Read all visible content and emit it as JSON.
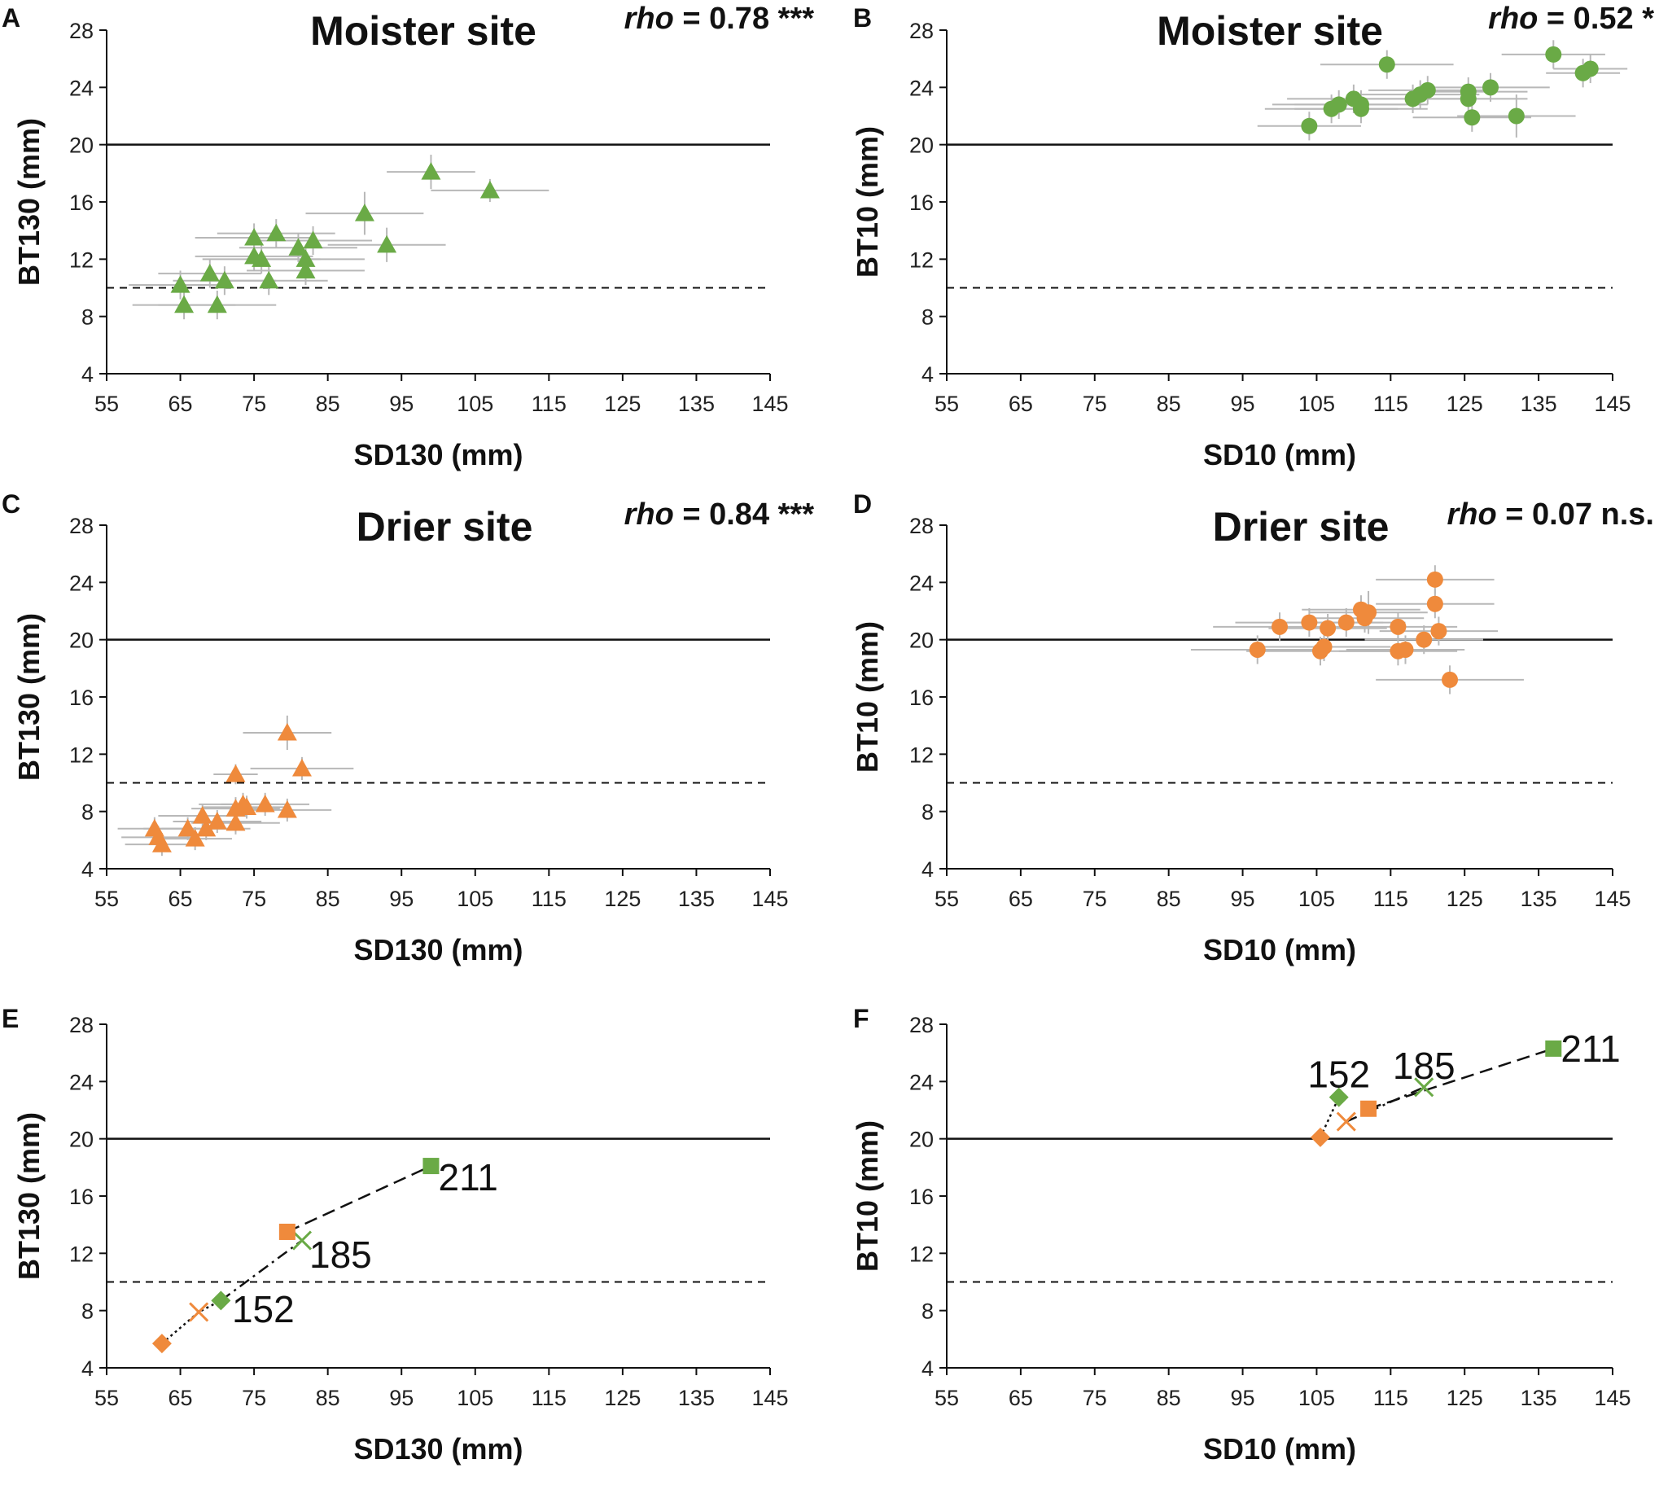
{
  "colors": {
    "green": "#6aaa46",
    "orange": "#ef8a3c",
    "errorbar": "#b8b8b8",
    "axis": "#111111"
  },
  "chart_data": [
    {
      "panel": "A",
      "type": "scatter",
      "title": "Moister site",
      "rho_label": "rho",
      "rho_value": " = 0.78 ***",
      "xlabel": "SD130 (mm)",
      "ylabel": "BT130 (mm)",
      "xlim": [
        55,
        145
      ],
      "ylim": [
        4,
        28
      ],
      "xticks": [
        "55",
        "65",
        "75",
        "85",
        "95",
        "105",
        "115",
        "125",
        "135",
        "145"
      ],
      "yticks": [
        "4",
        "8",
        "12",
        "16",
        "20",
        "24",
        "28"
      ],
      "hlines": [
        {
          "y": 20,
          "style": "solid"
        },
        {
          "y": 10,
          "style": "dashed"
        }
      ],
      "series": [
        {
          "name": "Moister site",
          "marker": "triangle",
          "color": "green",
          "points": [
            {
              "x": 99,
              "y": 18.1,
              "xerr": 6,
              "yerr": 1.2
            },
            {
              "x": 107,
              "y": 16.8,
              "xerr": 8,
              "yerr": 0.8
            },
            {
              "x": 90,
              "y": 15.2,
              "xerr": 8,
              "yerr": 1.5
            },
            {
              "x": 93,
              "y": 13,
              "xerr": 8,
              "yerr": 1.2
            },
            {
              "x": 75,
              "y": 13.5,
              "xerr": 8,
              "yerr": 1
            },
            {
              "x": 78,
              "y": 13.8,
              "xerr": 8,
              "yerr": 1
            },
            {
              "x": 83,
              "y": 13.3,
              "xerr": 8,
              "yerr": 1
            },
            {
              "x": 81,
              "y": 12.8,
              "xerr": 8,
              "yerr": 1
            },
            {
              "x": 75,
              "y": 12.2,
              "xerr": 8,
              "yerr": 1
            },
            {
              "x": 76,
              "y": 12,
              "xerr": 8,
              "yerr": 1
            },
            {
              "x": 82,
              "y": 12,
              "xerr": 8,
              "yerr": 1
            },
            {
              "x": 82,
              "y": 11.2,
              "xerr": 8,
              "yerr": 1
            },
            {
              "x": 69,
              "y": 11,
              "xerr": 7,
              "yerr": 1
            },
            {
              "x": 71,
              "y": 10.5,
              "xerr": 7,
              "yerr": 1
            },
            {
              "x": 77,
              "y": 10.5,
              "xerr": 8,
              "yerr": 1
            },
            {
              "x": 65,
              "y": 10.2,
              "xerr": 7,
              "yerr": 1
            },
            {
              "x": 65.5,
              "y": 8.8,
              "xerr": 7,
              "yerr": 1
            },
            {
              "x": 70,
              "y": 8.8,
              "xerr": 8,
              "yerr": 1
            }
          ]
        }
      ]
    },
    {
      "panel": "B",
      "type": "scatter",
      "title": "Moister site",
      "rho_label": "rho",
      "rho_value": " = 0.52 *",
      "xlabel": "SD10 (mm)",
      "ylabel": "BT10 (mm)",
      "xlim": [
        55,
        145
      ],
      "ylim": [
        4,
        28
      ],
      "xticks": [
        "55",
        "65",
        "75",
        "85",
        "95",
        "105",
        "115",
        "125",
        "135",
        "145"
      ],
      "yticks": [
        "4",
        "8",
        "12",
        "16",
        "20",
        "24",
        "28"
      ],
      "hlines": [
        {
          "y": 20,
          "style": "solid"
        },
        {
          "y": 10,
          "style": "dashed"
        }
      ],
      "series": [
        {
          "name": "Moister site",
          "marker": "circle",
          "color": "green",
          "points": [
            {
              "x": 104,
              "y": 21.3,
              "xerr": 7,
              "yerr": 1
            },
            {
              "x": 107,
              "y": 22.5,
              "xerr": 9,
              "yerr": 1
            },
            {
              "x": 108,
              "y": 22.8,
              "xerr": 9,
              "yerr": 1
            },
            {
              "x": 110,
              "y": 23.2,
              "xerr": 9,
              "yerr": 1
            },
            {
              "x": 111,
              "y": 22.8,
              "xerr": 9,
              "yerr": 1
            },
            {
              "x": 111,
              "y": 22.5,
              "xerr": 9,
              "yerr": 1
            },
            {
              "x": 114.5,
              "y": 25.6,
              "xerr": 9,
              "yerr": 1
            },
            {
              "x": 118,
              "y": 23.2,
              "xerr": 8,
              "yerr": 1
            },
            {
              "x": 119,
              "y": 23.5,
              "xerr": 8,
              "yerr": 1
            },
            {
              "x": 120,
              "y": 23.8,
              "xerr": 8,
              "yerr": 1
            },
            {
              "x": 125.5,
              "y": 23.7,
              "xerr": 8,
              "yerr": 1
            },
            {
              "x": 125.5,
              "y": 23.2,
              "xerr": 8,
              "yerr": 1
            },
            {
              "x": 126,
              "y": 21.9,
              "xerr": 8,
              "yerr": 1
            },
            {
              "x": 128.5,
              "y": 24,
              "xerr": 8,
              "yerr": 1
            },
            {
              "x": 132,
              "y": 22,
              "xerr": 8,
              "yerr": 1.5
            },
            {
              "x": 137,
              "y": 26.3,
              "xerr": 7,
              "yerr": 1
            },
            {
              "x": 141,
              "y": 25,
              "xerr": 5,
              "yerr": 1
            },
            {
              "x": 142,
              "y": 25.3,
              "xerr": 5,
              "yerr": 1
            }
          ]
        }
      ]
    },
    {
      "panel": "C",
      "type": "scatter",
      "title": "Drier site",
      "rho_label": "rho",
      "rho_value": " = 0.84 ***",
      "xlabel": "SD130 (mm)",
      "ylabel": "BT130 (mm)",
      "xlim": [
        55,
        145
      ],
      "ylim": [
        4,
        28
      ],
      "xticks": [
        "55",
        "65",
        "75",
        "85",
        "95",
        "105",
        "115",
        "125",
        "135",
        "145"
      ],
      "yticks": [
        "4",
        "8",
        "12",
        "16",
        "20",
        "24",
        "28"
      ],
      "hlines": [
        {
          "y": 20,
          "style": "solid"
        },
        {
          "y": 10,
          "style": "dashed"
        }
      ],
      "series": [
        {
          "name": "Drier site",
          "marker": "triangle",
          "color": "orange",
          "points": [
            {
              "x": 79.5,
              "y": 13.5,
              "xerr": 6,
              "yerr": 1.2
            },
            {
              "x": 81.5,
              "y": 11,
              "xerr": 7,
              "yerr": 0.8
            },
            {
              "x": 72.5,
              "y": 10.6,
              "xerr": 3,
              "yerr": 0.7
            },
            {
              "x": 73.5,
              "y": 8.5,
              "xerr": 6,
              "yerr": 0.8
            },
            {
              "x": 74,
              "y": 8.3,
              "xerr": 6,
              "yerr": 0.8
            },
            {
              "x": 76.5,
              "y": 8.5,
              "xerr": 6,
              "yerr": 0.8
            },
            {
              "x": 79.5,
              "y": 8.1,
              "xerr": 6,
              "yerr": 0.8
            },
            {
              "x": 72.5,
              "y": 8.2,
              "xerr": 6,
              "yerr": 0.8
            },
            {
              "x": 68,
              "y": 7.7,
              "xerr": 6,
              "yerr": 0.8
            },
            {
              "x": 70,
              "y": 7.3,
              "xerr": 6,
              "yerr": 0.8
            },
            {
              "x": 72.5,
              "y": 7.2,
              "xerr": 6,
              "yerr": 0.8
            },
            {
              "x": 66,
              "y": 6.8,
              "xerr": 6,
              "yerr": 0.8
            },
            {
              "x": 68.5,
              "y": 6.8,
              "xerr": 6,
              "yerr": 0.8
            },
            {
              "x": 61.5,
              "y": 6.8,
              "xerr": 5,
              "yerr": 0.8
            },
            {
              "x": 67,
              "y": 6.1,
              "xerr": 5,
              "yerr": 0.8
            },
            {
              "x": 62,
              "y": 6.2,
              "xerr": 5,
              "yerr": 0.8
            },
            {
              "x": 62.5,
              "y": 5.7,
              "xerr": 5,
              "yerr": 0.8
            }
          ]
        }
      ]
    },
    {
      "panel": "D",
      "type": "scatter",
      "title": "Drier site",
      "rho_label": "rho",
      "rho_value": " = 0.07 n.s.",
      "xlabel": "SD10 (mm)",
      "ylabel": "BT10 (mm)",
      "xlim": [
        55,
        145
      ],
      "ylim": [
        4,
        28
      ],
      "xticks": [
        "55",
        "65",
        "75",
        "85",
        "95",
        "105",
        "115",
        "125",
        "135",
        "145"
      ],
      "yticks": [
        "4",
        "8",
        "12",
        "16",
        "20",
        "24",
        "28"
      ],
      "hlines": [
        {
          "y": 20,
          "style": "solid"
        },
        {
          "y": 10,
          "style": "dashed"
        }
      ],
      "series": [
        {
          "name": "Drier site",
          "marker": "circle",
          "color": "orange",
          "points": [
            {
              "x": 121,
              "y": 24.2,
              "xerr": 8,
              "yerr": 1
            },
            {
              "x": 121,
              "y": 22.5,
              "xerr": 8,
              "yerr": 1
            },
            {
              "x": 111,
              "y": 22.1,
              "xerr": 8,
              "yerr": 1
            },
            {
              "x": 112,
              "y": 21.9,
              "xerr": 8,
              "yerr": 1.5
            },
            {
              "x": 111.5,
              "y": 21.5,
              "xerr": 8,
              "yerr": 1
            },
            {
              "x": 109,
              "y": 21.2,
              "xerr": 8,
              "yerr": 1
            },
            {
              "x": 104,
              "y": 21.2,
              "xerr": 10,
              "yerr": 1
            },
            {
              "x": 100,
              "y": 20.9,
              "xerr": 9,
              "yerr": 1
            },
            {
              "x": 106.5,
              "y": 20.8,
              "xerr": 8,
              "yerr": 1
            },
            {
              "x": 116,
              "y": 20.9,
              "xerr": 8,
              "yerr": 1
            },
            {
              "x": 121.5,
              "y": 20.6,
              "xerr": 8,
              "yerr": 1
            },
            {
              "x": 119.5,
              "y": 20,
              "xerr": 8,
              "yerr": 1
            },
            {
              "x": 106,
              "y": 19.5,
              "xerr": 9,
              "yerr": 1
            },
            {
              "x": 105.5,
              "y": 19.2,
              "xerr": 10,
              "yerr": 1
            },
            {
              "x": 97,
              "y": 19.3,
              "xerr": 9,
              "yerr": 1
            },
            {
              "x": 116,
              "y": 19.2,
              "xerr": 8,
              "yerr": 1
            },
            {
              "x": 117,
              "y": 19.3,
              "xerr": 8,
              "yerr": 1
            },
            {
              "x": 123,
              "y": 17.2,
              "xerr": 10,
              "yerr": 1
            }
          ]
        }
      ]
    },
    {
      "panel": "E",
      "type": "line",
      "xlabel": "SD130 (mm)",
      "ylabel": "BT130 (mm)",
      "xlim": [
        55,
        145
      ],
      "ylim": [
        4,
        28
      ],
      "xticks": [
        "55",
        "65",
        "75",
        "85",
        "95",
        "105",
        "115",
        "125",
        "135",
        "145"
      ],
      "yticks": [
        "4",
        "8",
        "12",
        "16",
        "20",
        "24",
        "28"
      ],
      "hlines": [
        {
          "y": 20,
          "style": "solid"
        },
        {
          "y": 10,
          "style": "dashed"
        }
      ],
      "series": [
        {
          "name": "152",
          "line": "dotted",
          "points": [
            {
              "x": 62.5,
              "y": 5.7,
              "marker": "diamond",
              "color": "orange"
            },
            {
              "x": 67.5,
              "y": 7.9,
              "marker": "x",
              "color": "orange"
            },
            {
              "x": 70.5,
              "y": 8.7,
              "marker": "diamond",
              "color": "green"
            }
          ]
        },
        {
          "name": "185",
          "line": "dashdot",
          "points": [
            {
              "x": 70.5,
              "y": 8.7,
              "marker": "none",
              "color": "green"
            },
            {
              "x": 81.5,
              "y": 12.9,
              "marker": "x",
              "color": "green"
            }
          ]
        },
        {
          "name": "211",
          "line": "dashed",
          "points": [
            {
              "x": 79.5,
              "y": 13.5,
              "marker": "square",
              "color": "orange"
            },
            {
              "x": 99,
              "y": 18.1,
              "marker": "square",
              "color": "green"
            }
          ]
        }
      ],
      "point_labels": [
        {
          "text": "152",
          "x": 72,
          "y": 8.1,
          "anchor": "start"
        },
        {
          "text": "185",
          "x": 82.5,
          "y": 11.9,
          "anchor": "start"
        },
        {
          "text": "211",
          "x": 100,
          "y": 17.3,
          "anchor": "start"
        }
      ]
    },
    {
      "panel": "F",
      "type": "line",
      "xlabel": "SD10 (mm)",
      "ylabel": "BT10 (mm)",
      "xlim": [
        55,
        145
      ],
      "ylim": [
        4,
        28
      ],
      "xticks": [
        "55",
        "65",
        "75",
        "85",
        "95",
        "105",
        "115",
        "125",
        "135",
        "145"
      ],
      "yticks": [
        "4",
        "8",
        "12",
        "16",
        "20",
        "24",
        "28"
      ],
      "hlines": [
        {
          "y": 20,
          "style": "solid"
        },
        {
          "y": 10,
          "style": "dashed"
        }
      ],
      "series": [
        {
          "name": "152",
          "line": "dotted",
          "points": [
            {
              "x": 105.5,
              "y": 20.1,
              "marker": "diamond",
              "color": "orange"
            },
            {
              "x": 108,
              "y": 22.9,
              "marker": "diamond",
              "color": "green"
            }
          ]
        },
        {
          "name": "185",
          "line": "dashdot",
          "points": [
            {
              "x": 109,
              "y": 21.2,
              "marker": "x",
              "color": "orange"
            },
            {
              "x": 119.5,
              "y": 23.6,
              "marker": "x",
              "color": "green"
            }
          ]
        },
        {
          "name": "211",
          "line": "dashed",
          "points": [
            {
              "x": 112,
              "y": 22.1,
              "marker": "square",
              "color": "orange"
            },
            {
              "x": 137,
              "y": 26.3,
              "marker": "square",
              "color": "green"
            }
          ]
        }
      ],
      "point_labels": [
        {
          "text": "152",
          "x": 108,
          "y": 24.5,
          "anchor": "middle"
        },
        {
          "text": "185",
          "x": 119.5,
          "y": 25.1,
          "anchor": "middle"
        },
        {
          "text": "211",
          "x": 138,
          "y": 26.3,
          "anchor": "start"
        }
      ]
    }
  ]
}
